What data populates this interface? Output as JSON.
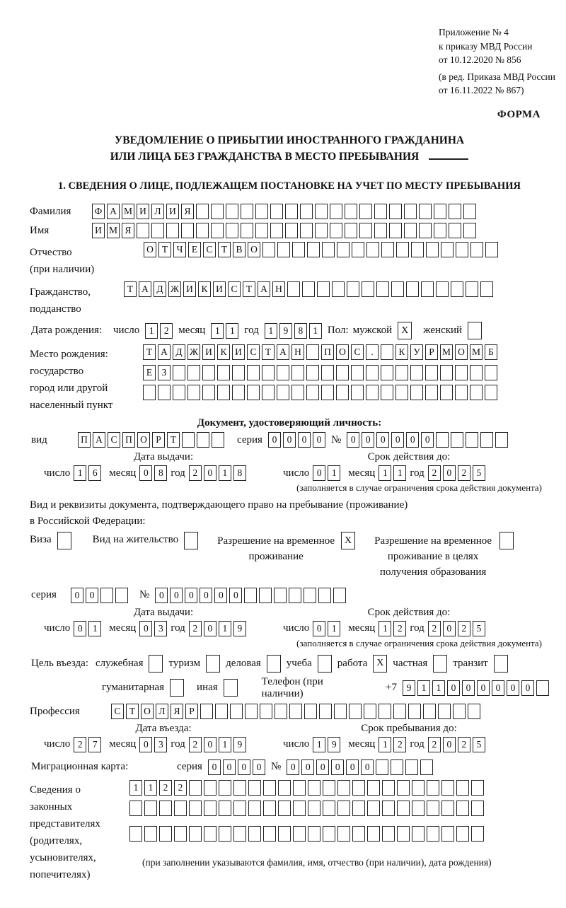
{
  "meta": {
    "appendix_lines": [
      "Приложение № 4",
      "к приказу МВД России",
      "от 10.12.2020 № 856"
    ],
    "edition_lines": [
      "(в ред. Приказа МВД России",
      "от 16.11.2022 № 867)"
    ],
    "form_label": "ФОРМА"
  },
  "title": {
    "line1": "УВЕДОМЛЕНИЕ О ПРИБЫТИИ ИНОСТРАННОГО ГРАЖДАНИНА",
    "line2": "ИЛИ ЛИЦА БЕЗ ГРАЖДАНСТВА В МЕСТО ПРЕБЫВАНИЯ"
  },
  "date_labels": {
    "day": "число",
    "month": "месяц",
    "year": "год"
  },
  "section1": {
    "heading": "1. СВЕДЕНИЯ О ЛИЦЕ, ПОДЛЕЖАЩЕМ ПОСТАНОВКЕ НА УЧЕТ ПО МЕСТУ ПРЕБЫВАНИЯ",
    "surname": {
      "label": "Фамилия",
      "cells": 26,
      "value": "ФАМИЛИЯ"
    },
    "name": {
      "label": "Имя",
      "cells": 26,
      "value": "ИМЯ"
    },
    "patronymic": {
      "label": "Отчество",
      "label2": "(при наличии)",
      "cells": 24,
      "value": "ОТЧЕСТВО"
    },
    "citizenship": {
      "label": "Гражданство,",
      "label2": "подданство",
      "cells": 25,
      "value": "ТАДЖИКИСТАН"
    },
    "birth_date": {
      "label": "Дата рождения:",
      "day": {
        "cells": 2,
        "value": "12"
      },
      "month": {
        "cells": 2,
        "value": "11"
      },
      "year": {
        "cells": 4,
        "value": "1981"
      },
      "sex_label": "Пол:",
      "male_label": "мужской",
      "male_checked": "X",
      "female_label": "женский",
      "female_checked": ""
    },
    "birth_place": {
      "label_lines": [
        "Место рождения:",
        "государство",
        "город или другой",
        "населенный пункт"
      ],
      "rows": [
        {
          "cells": 24,
          "value": "ТАДЖИКИСТАН ПОС. КУРМОМБ"
        },
        {
          "cells": 24,
          "value": "ЕЗ"
        },
        {
          "cells": 24,
          "value": ""
        }
      ]
    },
    "identity_doc": {
      "heading": "Документ, удостоверяющий личность:",
      "kind_label": "вид",
      "kind": {
        "cells": 10,
        "value": "ПАСПОРТ"
      },
      "series_label": "серия",
      "series": {
        "cells": 4,
        "value": "0000"
      },
      "number_label": "№",
      "number": {
        "cells": 11,
        "value": "000000"
      },
      "issue": {
        "heading": "Дата выдачи:",
        "day": {
          "cells": 2,
          "value": "16"
        },
        "month": {
          "cells": 2,
          "value": "08"
        },
        "year": {
          "cells": 4,
          "value": "2018"
        }
      },
      "valid": {
        "heading": "Срок действия до:",
        "day": {
          "cells": 2,
          "value": "01"
        },
        "month": {
          "cells": 2,
          "value": "11"
        },
        "year": {
          "cells": 4,
          "value": "2025"
        }
      },
      "note": "(заполняется в случае ограничения срока действия документа)"
    },
    "residence_doc": {
      "line1": "Вид и реквизиты документа, подтверждающего право на пребывание (проживание)",
      "line2": "в Российской Федерации:",
      "options": [
        {
          "label": "Виза",
          "checked": ""
        },
        {
          "label": "Вид на жительство",
          "checked": ""
        },
        {
          "label": "Разрешение на временное проживание",
          "checked": "X"
        },
        {
          "label": "Разрешение на временное проживание в целях получения образования",
          "checked": ""
        }
      ],
      "series_label": "серия",
      "series": {
        "cells": 4,
        "value": "00"
      },
      "number_label": "№",
      "number": {
        "cells": 13,
        "value": "000000"
      },
      "issue": {
        "heading": "Дата выдачи:",
        "day": {
          "cells": 2,
          "value": "01"
        },
        "month": {
          "cells": 2,
          "value": "03"
        },
        "year": {
          "cells": 4,
          "value": "2019"
        }
      },
      "valid": {
        "heading": "Срок действия до:",
        "day": {
          "cells": 2,
          "value": "01"
        },
        "month": {
          "cells": 2,
          "value": "12"
        },
        "year": {
          "cells": 4,
          "value": "2025"
        }
      },
      "note": "(заполняется в случае ограничения срока действия документа)"
    },
    "purpose": {
      "label": "Цель въезда:",
      "options_row1": [
        {
          "label": "служебная",
          "checked": ""
        },
        {
          "label": "туризм",
          "checked": ""
        },
        {
          "label": "деловая",
          "checked": ""
        },
        {
          "label": "учеба",
          "checked": ""
        },
        {
          "label": "работа",
          "checked": "X"
        },
        {
          "label": "частная",
          "checked": ""
        },
        {
          "label": "транзит",
          "checked": ""
        }
      ],
      "options_row2": [
        {
          "label": "гуманитарная",
          "checked": ""
        },
        {
          "label": "иная",
          "checked": ""
        }
      ],
      "phone_label": "Телефон (при наличии)",
      "phone_prefix": "+7",
      "phone": {
        "cells": 10,
        "value": "911000000"
      }
    },
    "profession": {
      "label": "Профессия",
      "cells": 25,
      "value": "СТОЛЯР"
    },
    "entry": {
      "heading": "Дата въезда:",
      "day": {
        "cells": 2,
        "value": "27"
      },
      "month": {
        "cells": 2,
        "value": "03"
      },
      "year": {
        "cells": 4,
        "value": "2019"
      }
    },
    "stay": {
      "heading": "Срок пребывания до:",
      "day": {
        "cells": 2,
        "value": "19"
      },
      "month": {
        "cells": 2,
        "value": "12"
      },
      "year": {
        "cells": 4,
        "value": "2025"
      }
    },
    "migration_card": {
      "label": "Миграционная карта:",
      "series_label": "серия",
      "series": {
        "cells": 4,
        "value": "0000"
      },
      "number_label": "№",
      "number": {
        "cells": 10,
        "value": "000000"
      }
    },
    "representatives": {
      "label_lines": [
        "Сведения о",
        "законных",
        "представителях",
        "(родителях,",
        "усыновителях,",
        "попечителях)"
      ],
      "rows": [
        {
          "cells": 24,
          "value": "1122"
        },
        {
          "cells": 24,
          "value": ""
        },
        {
          "cells": 24,
          "value": ""
        }
      ],
      "note": "(при заполнении указываются фамилия, имя, отчество (при наличии), дата рождения)"
    }
  }
}
